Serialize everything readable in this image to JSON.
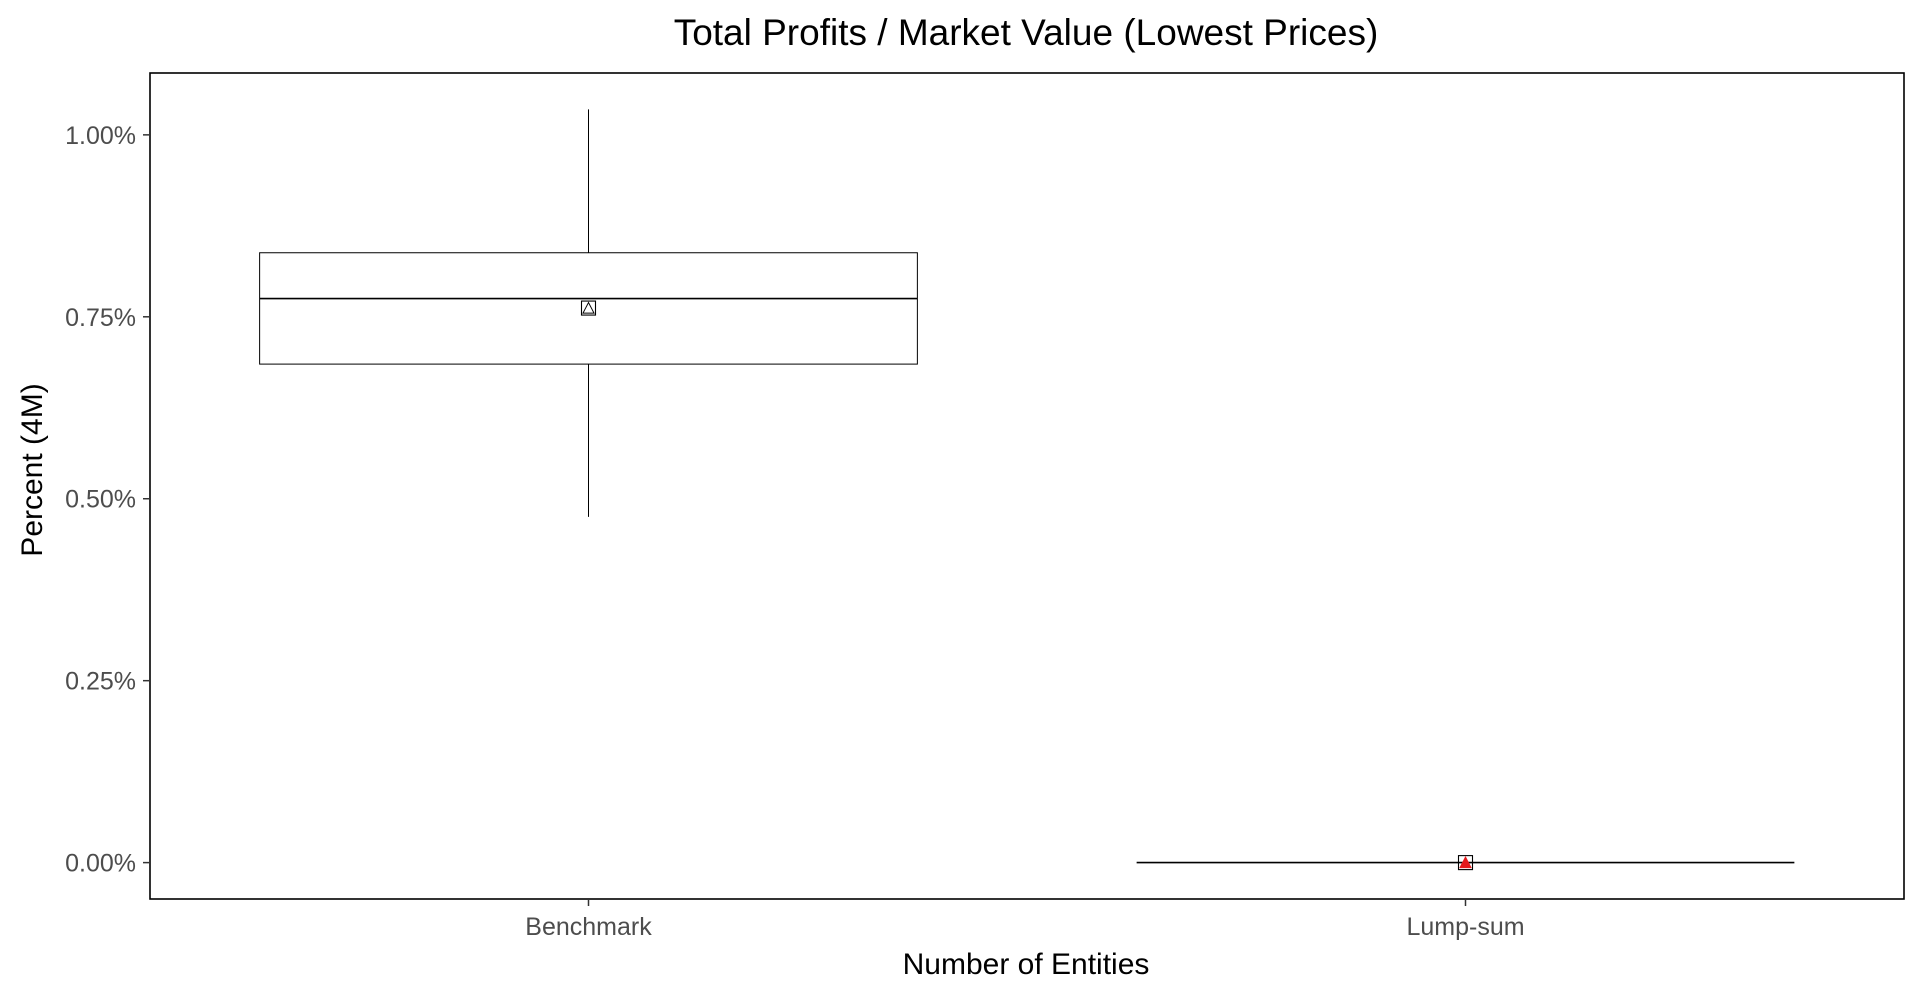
{
  "chart_data": {
    "type": "boxplot",
    "title": "Total Profits / Market Value (Lowest Prices)",
    "xlabel": "Number of Entities",
    "ylabel": "Percent (4M)",
    "categories": [
      "Benchmark",
      "Lump-sum"
    ],
    "y_unit": "percent",
    "ylim": [
      -0.05,
      1.085
    ],
    "yticks": [
      0.0,
      0.25,
      0.5,
      0.75,
      1.0
    ],
    "ytick_labels": [
      "0.00%",
      "0.25%",
      "0.50%",
      "0.75%",
      "1.00%"
    ],
    "grid": false,
    "legend": "none",
    "boxes": [
      {
        "category": "Benchmark",
        "whisker_low": 0.475,
        "q1": 0.685,
        "median": 0.775,
        "q3": 0.838,
        "whisker_high": 1.035,
        "mean": 0.762,
        "mean_marker_color": "#000000"
      },
      {
        "category": "Lump-sum",
        "whisker_low": 0.0,
        "q1": 0.0,
        "median": 0.0,
        "q3": 0.0,
        "whisker_high": 0.0,
        "mean": 0.0,
        "mean_marker_color": "#e41a1c"
      }
    ],
    "colors": {
      "box_stroke": "#000000",
      "panel_border": "#000000",
      "tick_label": "#4d4d4d"
    }
  }
}
